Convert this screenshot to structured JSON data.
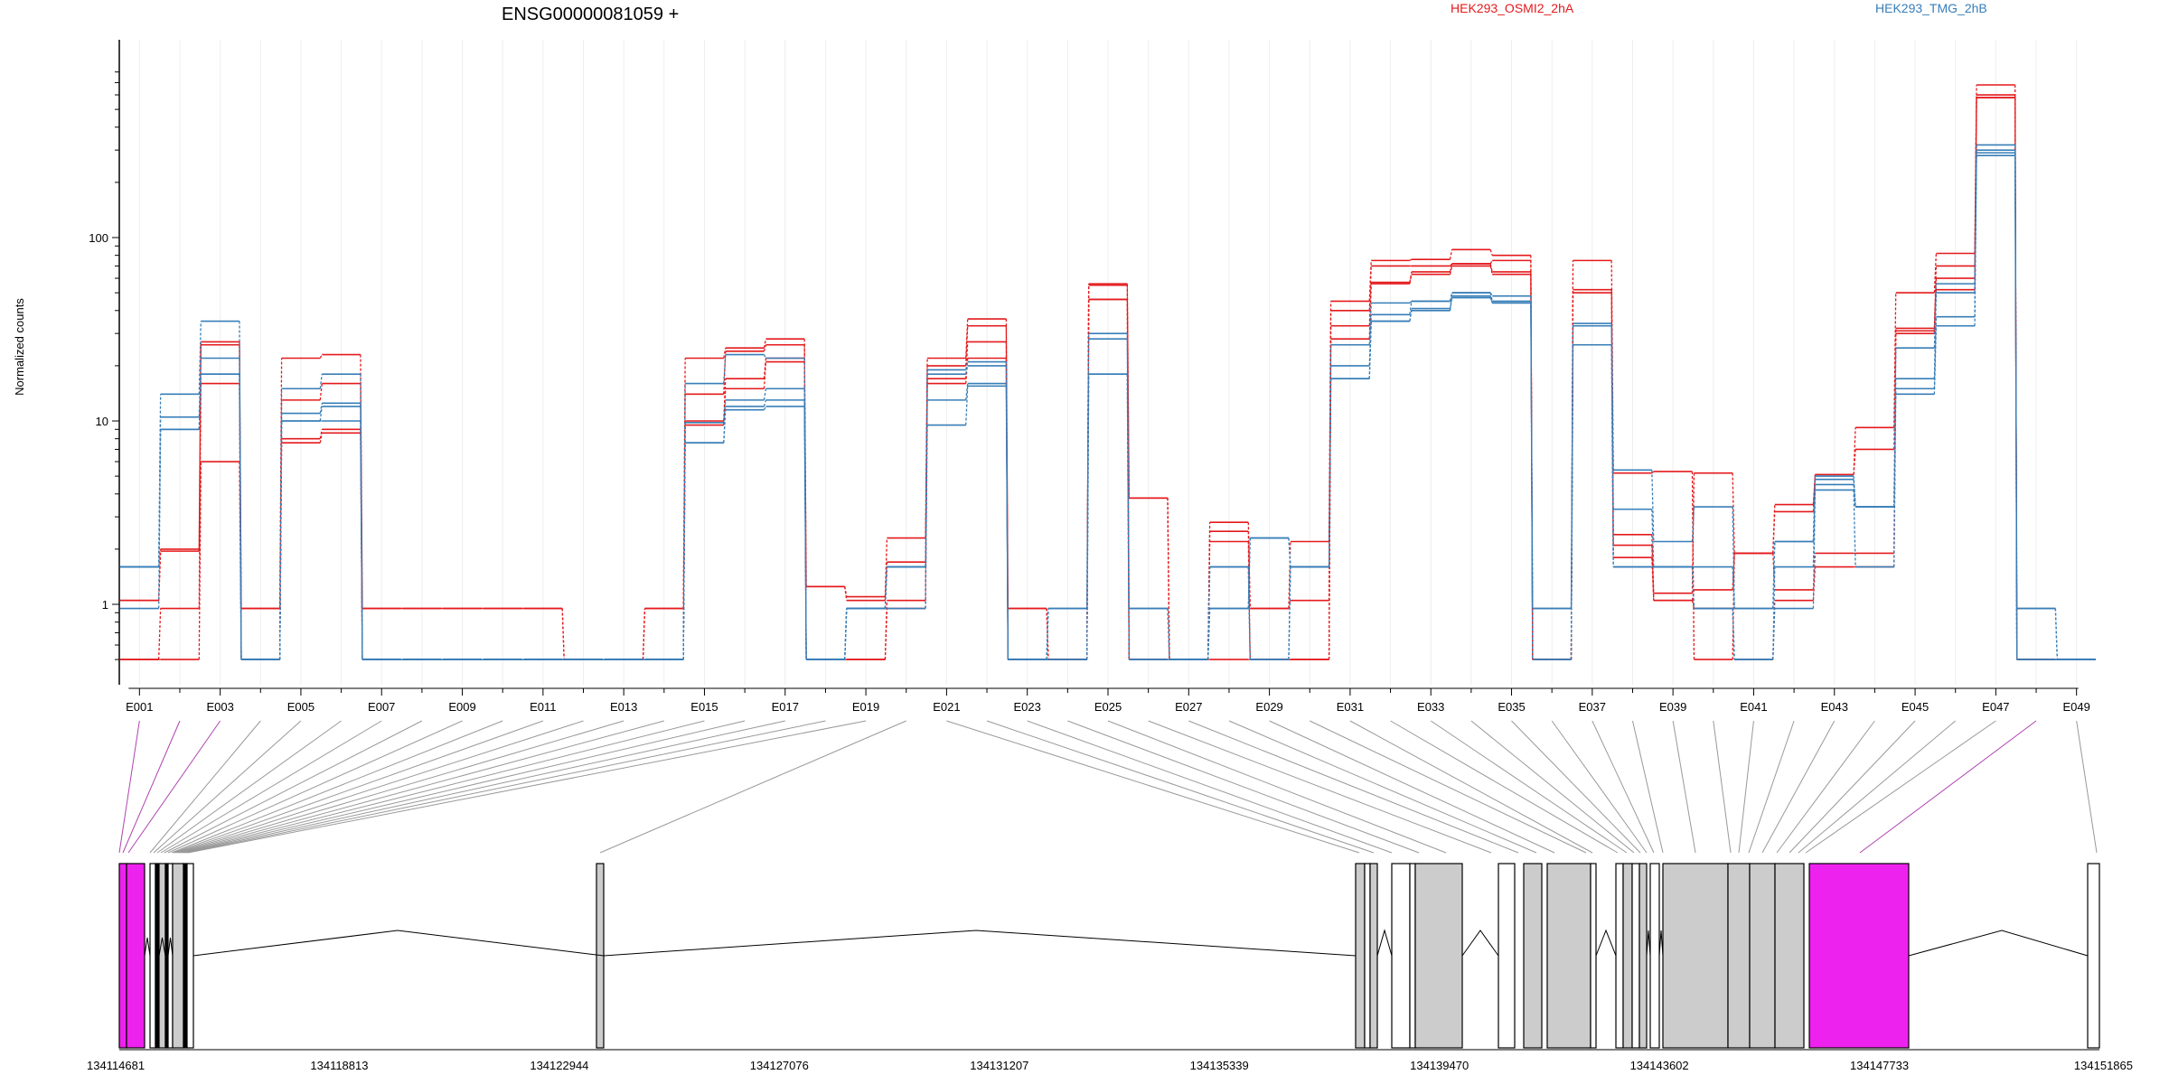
{
  "chart_data": {
    "type": "line",
    "title": "ENSG00000081059 +",
    "ylabel": "Normalized counts",
    "yscale": "log",
    "ylim": [
      0.45,
      850
    ],
    "yticks": [
      "1",
      "10",
      "100"
    ],
    "legend_position": "top",
    "colors": {
      "OSMI2": "#e41a1c",
      "TMG": "#377eb8",
      "alt_exon": "#ee22ee",
      "exon": "#cccccc"
    },
    "categories": [
      "E001",
      "E002",
      "E003",
      "E004",
      "E005",
      "E006",
      "E007",
      "E008",
      "E009",
      "E010",
      "E011",
      "E012",
      "E013",
      "E014",
      "E015",
      "E016",
      "E017",
      "E018",
      "E019",
      "E020",
      "E021",
      "E022",
      "E023",
      "E024",
      "E025",
      "E026",
      "E027",
      "E028",
      "E029",
      "E030",
      "E031",
      "E032",
      "E033",
      "E034",
      "E035",
      "E036",
      "E037",
      "E038",
      "E039",
      "E040",
      "E041",
      "E042",
      "E043",
      "E044",
      "E045",
      "E046",
      "E047",
      "E048",
      "E049"
    ],
    "tick_labels": [
      "E001",
      "E003",
      "E005",
      "E007",
      "E009",
      "E011",
      "E013",
      "E015",
      "E017",
      "E019",
      "E021",
      "E023",
      "E025",
      "E027",
      "E029",
      "E031",
      "E033",
      "E035",
      "E037",
      "E039",
      "E041",
      "E043",
      "E045",
      "E047",
      "E049"
    ],
    "series": [
      {
        "name": "HEK293_OSMI2_2hA",
        "group": "OSMI2",
        "values": [
          1.05,
          2.0,
          27,
          0.95,
          22,
          23,
          0.95,
          0.95,
          0.95,
          0.95,
          0.95,
          0.5,
          0.5,
          0.95,
          22,
          25,
          28,
          1.25,
          1.1,
          2.3,
          22,
          36,
          0.95,
          0.5,
          56,
          3.8,
          0.5,
          2.5,
          0.95,
          2.2,
          45,
          75,
          76,
          86,
          80,
          0.5,
          75,
          5.2,
          5.3,
          0.5,
          1.9,
          3.5,
          5.1,
          9.2,
          50,
          82,
          680,
          0.5,
          0.5
        ]
      },
      {
        "name": "HEK293_OSMI2_2hA",
        "group": "OSMI2",
        "values": [
          1.05,
          1.95,
          26,
          0.95,
          13,
          16,
          0.95,
          0.95,
          0.95,
          0.95,
          0.95,
          0.5,
          0.5,
          0.95,
          14,
          24,
          26,
          1.25,
          1.05,
          1.7,
          20,
          33,
          0.95,
          0.5,
          55,
          3.8,
          0.5,
          2.8,
          0.95,
          1.05,
          40,
          70,
          70,
          72,
          75,
          0.5,
          52,
          2.4,
          1.15,
          5.2,
          1.9,
          3.2,
          5.1,
          7.0,
          32,
          70,
          600,
          0.5,
          0.5
        ]
      },
      {
        "name": "HEK293_OSMI2_2hA",
        "group": "OSMI2",
        "values": [
          0.5,
          0.95,
          16,
          0.5,
          8,
          9,
          0.5,
          0.5,
          0.5,
          0.5,
          0.5,
          0.5,
          0.5,
          0.5,
          10,
          17,
          22,
          0.5,
          0.5,
          1.05,
          17,
          27,
          0.5,
          0.5,
          46,
          0.5,
          0.5,
          2.2,
          0.5,
          0.5,
          33,
          57,
          65,
          72,
          65,
          0.5,
          50,
          2.1,
          1.05,
          1.2,
          1.9,
          1.2,
          1.9,
          1.9,
          31,
          60,
          580,
          0.5,
          0.5
        ]
      },
      {
        "name": "HEK293_OSMI2_2hA",
        "group": "OSMI2",
        "values": [
          0.5,
          0.5,
          6,
          0.5,
          7.6,
          8.6,
          0.5,
          0.5,
          0.5,
          0.5,
          0.5,
          0.5,
          0.5,
          0.5,
          9.5,
          15,
          21,
          0.5,
          0.5,
          0.95,
          16,
          22,
          0.5,
          0.5,
          46,
          0.5,
          0.5,
          0.5,
          0.5,
          0.5,
          28,
          56,
          63,
          70,
          63,
          0.5,
          33,
          1.8,
          1.05,
          0.95,
          0.5,
          1.05,
          1.6,
          1.6,
          30,
          52,
          580,
          0.5,
          0.5
        ]
      },
      {
        "name": "HEK293_TMG_2hB",
        "group": "TMG",
        "values": [
          1.6,
          14,
          35,
          0.5,
          15,
          18,
          0.5,
          0.5,
          0.5,
          0.5,
          0.5,
          0.5,
          0.5,
          0.5,
          16,
          23,
          22,
          0.5,
          0.95,
          1.6,
          19,
          21,
          0.5,
          0.95,
          30,
          0.95,
          0.5,
          0.95,
          2.3,
          1.6,
          26,
          44,
          45,
          50,
          48,
          0.95,
          34,
          5.4,
          2.2,
          3.4,
          0.95,
          2.2,
          5.0,
          3.4,
          25,
          56,
          320,
          0.95,
          0.5
        ]
      },
      {
        "name": "HEK293_TMG_2hB",
        "group": "TMG",
        "values": [
          1.6,
          10.5,
          22,
          0.5,
          11,
          12.5,
          0.5,
          0.5,
          0.5,
          0.5,
          0.5,
          0.5,
          0.5,
          0.5,
          9.8,
          13,
          15,
          0.5,
          0.95,
          1.6,
          18,
          20,
          0.5,
          0.95,
          28,
          0.95,
          0.5,
          0.95,
          2.3,
          1.6,
          20,
          38,
          45,
          50,
          45,
          0.95,
          33,
          3.3,
          1.6,
          1.6,
          0.95,
          2.2,
          4.8,
          3.4,
          17,
          50,
          300,
          0.95,
          0.5
        ]
      },
      {
        "name": "HEK293_TMG_2hB",
        "group": "TMG",
        "values": [
          1.6,
          9.0,
          18,
          0.5,
          10,
          12,
          0.5,
          0.5,
          0.5,
          0.5,
          0.5,
          0.5,
          0.5,
          0.5,
          7.6,
          12,
          13,
          0.5,
          0.95,
          1.6,
          13,
          16,
          0.5,
          0.5,
          18,
          0.5,
          0.5,
          1.6,
          0.5,
          1.6,
          17,
          35,
          41,
          48,
          44,
          0.5,
          26,
          1.6,
          1.6,
          0.95,
          0.5,
          1.6,
          4.5,
          3.4,
          15,
          37,
          290,
          0.5,
          0.5
        ]
      },
      {
        "name": "HEK293_TMG_2hB",
        "group": "TMG",
        "values": [
          0.95,
          9.0,
          18,
          0.5,
          10,
          10,
          0.5,
          0.5,
          0.5,
          0.5,
          0.5,
          0.5,
          0.5,
          0.5,
          7.6,
          11.5,
          12,
          0.5,
          0.95,
          0.95,
          9.5,
          15.5,
          0.5,
          0.5,
          18,
          0.5,
          0.5,
          1.6,
          0.5,
          1.6,
          17,
          35,
          40,
          47,
          44,
          0.5,
          26,
          1.6,
          1.6,
          0.95,
          0.5,
          0.95,
          4.2,
          1.6,
          14,
          33,
          280,
          0.5,
          0.5
        ]
      }
    ],
    "gene_model": {
      "coordinate_ticks": [
        "134114681",
        "134118813",
        "134122944",
        "134127076",
        "134131207",
        "134135339",
        "134139470",
        "134143602",
        "134147733",
        "134151865"
      ]
    }
  }
}
